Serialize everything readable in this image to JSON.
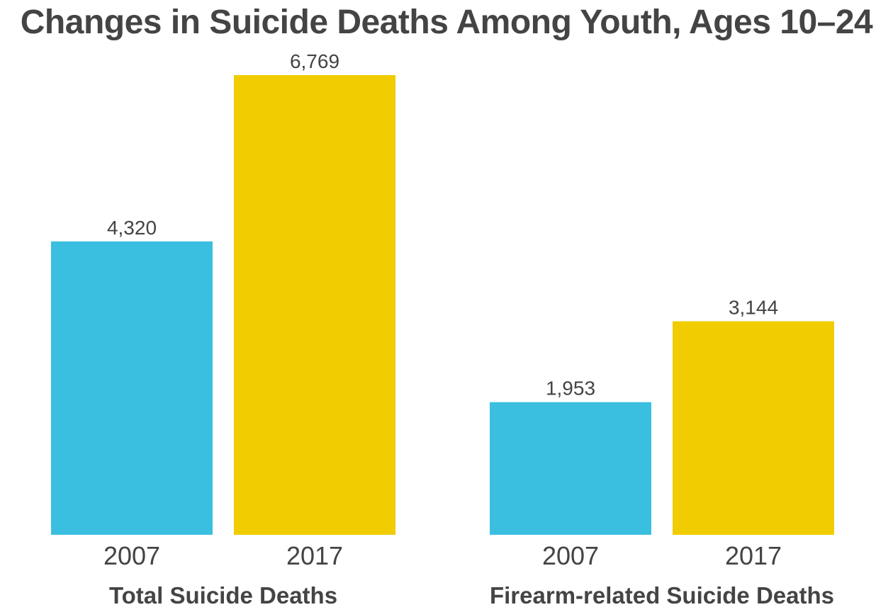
{
  "chart_data": {
    "type": "bar",
    "title": "Changes in Suicide Deaths Among Youth, Ages 10–24",
    "xlabel": "",
    "ylabel": "",
    "ylim": [
      0,
      6769
    ],
    "grid": false,
    "legend": "none",
    "groups": [
      {
        "name": "Total Suicide Deaths",
        "bars": [
          {
            "category": "2007",
            "value": 4320,
            "label": "4,320",
            "color": "#3bbfe0"
          },
          {
            "category": "2017",
            "value": 6769,
            "label": "6,769",
            "color": "#f0cc00"
          }
        ]
      },
      {
        "name": "Firearm-related Suicide Deaths",
        "bars": [
          {
            "category": "2007",
            "value": 1953,
            "label": "1,953",
            "color": "#3bbfe0"
          },
          {
            "category": "2017",
            "value": 3144,
            "label": "3,144",
            "color": "#f0cc00"
          }
        ]
      }
    ]
  }
}
